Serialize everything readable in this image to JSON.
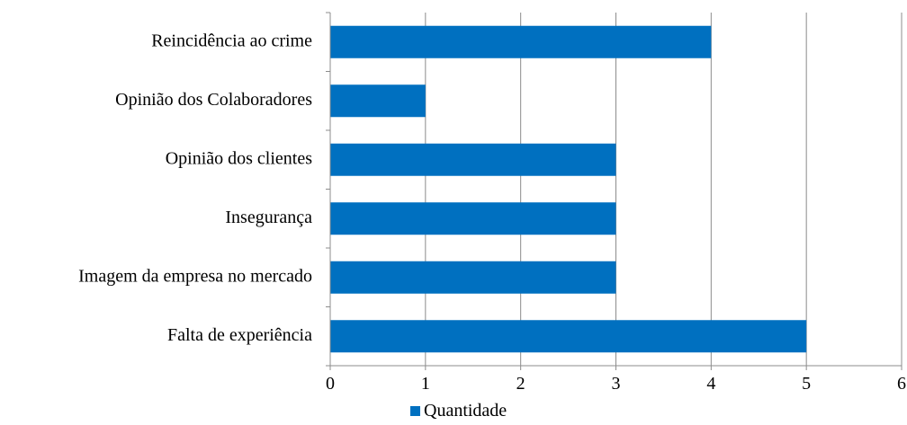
{
  "chart_data": {
    "type": "bar",
    "orientation": "horizontal",
    "categories": [
      "Reincidência ao crime",
      "Opinião dos Colaboradores",
      "Opinião dos clientes",
      "Insegurança",
      "Imagem da empresa no mercado",
      "Falta de experiência"
    ],
    "series": [
      {
        "name": "Quantidade",
        "values": [
          4,
          1,
          3,
          3,
          3,
          5
        ],
        "color": "#0070c0"
      }
    ],
    "xlim": [
      0,
      6
    ],
    "xticks": [
      "0",
      "1",
      "2",
      "3",
      "4",
      "5",
      "6"
    ],
    "grid": true,
    "legend_position": "bottom",
    "title": "",
    "xlabel": "",
    "ylabel": ""
  }
}
